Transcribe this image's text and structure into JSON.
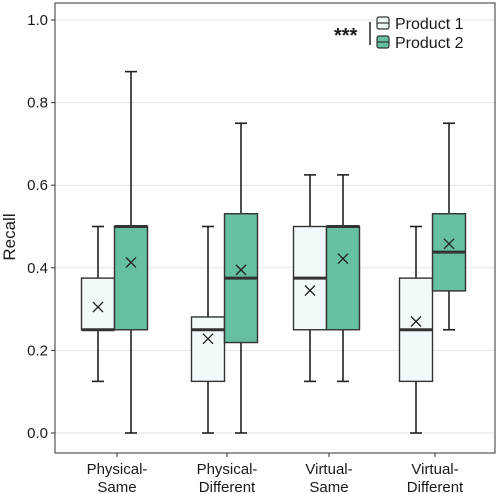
{
  "chart_data": {
    "type": "box",
    "ylabel": "Recall",
    "xlabel": "",
    "ylim": [
      0,
      1
    ],
    "yticks": [
      "0.0",
      "0.2",
      "0.4",
      "0.6",
      "0.8",
      "1.0"
    ],
    "categories": [
      [
        "Physical-",
        "Same"
      ],
      [
        "Physical-",
        "Different"
      ],
      [
        "Virtual-",
        "Same"
      ],
      [
        "Virtual-",
        "Different"
      ]
    ],
    "series": [
      {
        "name": "Product 1",
        "color": "#f1f9fb",
        "boxes": [
          {
            "min": 0.125,
            "q1": 0.25,
            "median": 0.25,
            "q3": 0.375,
            "max": 0.5,
            "mean": 0.305
          },
          {
            "min": 0.0,
            "q1": 0.125,
            "median": 0.25,
            "q3": 0.281,
            "max": 0.5,
            "mean": 0.228
          },
          {
            "min": 0.125,
            "q1": 0.25,
            "median": 0.375,
            "q3": 0.5,
            "max": 0.625,
            "mean": 0.345
          },
          {
            "min": 0.0,
            "q1": 0.125,
            "median": 0.25,
            "q3": 0.375,
            "max": 0.5,
            "mean": 0.27
          }
        ]
      },
      {
        "name": "Product 2",
        "color": "#66bf9f",
        "boxes": [
          {
            "min": 0.0,
            "q1": 0.25,
            "median": 0.5,
            "q3": 0.5,
            "max": 0.875,
            "mean": 0.413
          },
          {
            "min": 0.0,
            "q1": 0.219,
            "median": 0.375,
            "q3": 0.531,
            "max": 0.75,
            "mean": 0.395
          },
          {
            "min": 0.125,
            "q1": 0.25,
            "median": 0.5,
            "q3": 0.5,
            "max": 0.625,
            "mean": 0.422
          },
          {
            "min": 0.25,
            "q1": 0.344,
            "median": 0.438,
            "q3": 0.531,
            "max": 0.75,
            "mean": 0.458
          }
        ]
      }
    ],
    "significance": "***",
    "legend_position": "top-right",
    "grid": true
  }
}
